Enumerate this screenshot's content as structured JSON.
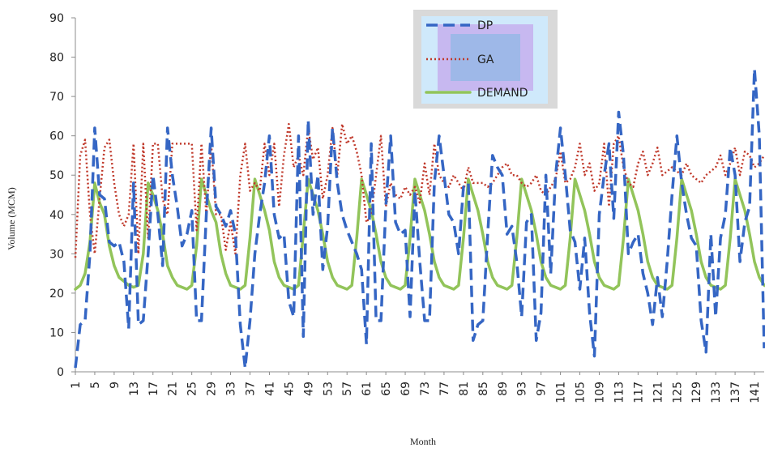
{
  "chart_data": {
    "type": "line",
    "title": "",
    "xlabel": "Month",
    "ylabel": "Volume (MCM)",
    "ylim": [
      0,
      90
    ],
    "y_ticks": [
      "0",
      "10",
      "20",
      "30",
      "40",
      "50",
      "60",
      "70",
      "80",
      "90"
    ],
    "x_tick_labels": [
      "1",
      "5",
      "9",
      "13",
      "17",
      "21",
      "25",
      "29",
      "33",
      "37",
      "41",
      "45",
      "49",
      "53",
      "57",
      "61",
      "65",
      "69",
      "73",
      "77",
      "81",
      "85",
      "89",
      "93",
      "97",
      "101",
      "105",
      "109",
      "113",
      "117",
      "121",
      "125",
      "129",
      "133",
      "137",
      "141"
    ],
    "xlim": [
      1,
      143
    ],
    "grid": false,
    "legend_position": "top-center",
    "series": [
      {
        "name": "DP",
        "color": "#3566C4",
        "style": "dashed",
        "values": [
          1,
          12,
          13,
          30,
          62,
          45,
          44,
          33,
          32,
          33,
          28,
          11,
          48,
          12,
          13,
          30,
          50,
          40,
          27,
          62,
          50,
          42,
          32,
          35,
          41,
          13,
          13,
          40,
          62,
          42,
          40,
          37,
          41,
          35,
          12,
          1,
          13,
          30,
          40,
          48,
          60,
          40,
          34,
          35,
          18,
          14,
          60,
          9,
          64,
          40,
          50,
          26,
          37,
          62,
          48,
          40,
          36,
          33,
          30,
          26,
          7,
          58,
          13,
          13,
          42,
          60,
          38,
          35,
          36,
          14,
          46,
          28,
          13,
          13,
          48,
          60,
          50,
          40,
          38,
          30,
          47,
          48,
          8,
          12,
          13,
          35,
          55,
          52,
          50,
          35,
          37,
          28,
          14,
          38,
          40,
          8,
          15,
          50,
          25,
          50,
          62,
          50,
          36,
          33,
          21,
          34,
          15,
          4,
          40,
          50,
          58,
          39,
          66,
          55,
          30,
          33,
          35,
          25,
          20,
          12,
          24,
          14,
          28,
          45,
          60,
          48,
          40,
          34,
          32,
          13,
          5,
          35,
          14,
          34,
          40,
          57,
          50,
          28,
          38,
          42,
          77,
          60,
          6
        ]
      },
      {
        "name": "GA",
        "color": "#C0392B",
        "style": "dotted",
        "values": [
          29,
          55,
          59,
          40,
          30,
          44,
          57,
          59,
          48,
          40,
          37,
          40,
          58,
          30,
          58,
          34,
          58,
          58,
          44,
          40,
          58,
          58,
          58,
          58,
          58,
          36,
          58,
          40,
          58,
          40,
          40,
          31,
          38,
          30,
          50,
          58,
          46,
          48,
          46,
          58,
          50,
          58,
          42,
          55,
          63,
          52,
          55,
          50,
          62,
          54,
          57,
          44,
          50,
          62,
          50,
          63,
          58,
          60,
          56,
          50,
          38,
          40,
          50,
          60,
          42,
          48,
          45,
          44,
          47,
          45,
          47,
          43,
          53,
          45,
          58,
          50,
          48,
          47,
          50,
          48,
          46,
          52,
          48,
          48,
          48,
          47,
          48,
          50,
          52,
          53,
          50,
          50,
          48,
          47,
          48,
          50,
          46,
          45,
          47,
          49,
          56,
          48,
          49,
          52,
          58,
          50,
          53,
          46,
          48,
          58,
          42,
          58,
          60,
          52,
          48,
          47,
          53,
          56,
          50,
          53,
          57,
          50,
          51,
          52,
          51,
          50,
          53,
          50,
          49,
          48,
          50,
          51,
          52,
          55,
          50,
          53,
          57,
          50,
          56,
          55,
          52,
          53,
          55
        ]
      },
      {
        "name": "DEMAND",
        "color": "#92C45A",
        "style": "solid",
        "values": [
          21,
          22,
          25,
          33,
          48,
          43,
          40,
          32,
          27,
          24,
          23,
          22,
          21.5,
          22,
          30,
          48,
          45,
          41,
          35,
          27,
          24,
          22,
          21.5,
          21,
          22,
          32,
          49,
          45,
          41,
          38,
          30,
          25,
          22,
          21.5,
          21,
          22,
          34,
          49,
          45,
          41,
          36,
          28,
          24,
          22,
          21.5,
          21,
          22,
          35,
          49,
          45,
          41,
          35,
          28,
          24,
          22,
          21.5,
          21,
          22,
          34,
          49,
          45,
          41,
          35,
          28,
          24,
          22,
          21.5,
          21,
          22,
          34,
          49,
          45,
          41,
          35,
          28,
          24,
          22,
          21.5,
          21,
          22,
          34,
          49,
          45,
          41,
          35,
          28,
          24,
          22,
          21.5,
          21,
          22,
          34,
          49,
          45,
          41,
          35,
          28,
          24,
          22,
          21.5,
          21,
          22,
          34,
          49,
          45,
          41,
          35,
          28,
          24,
          22,
          21.5,
          21,
          22,
          34,
          49,
          45,
          41,
          35,
          28,
          24,
          22,
          21.5,
          21,
          22,
          34,
          49,
          45,
          41,
          35,
          28,
          24,
          22,
          21.5,
          21,
          22,
          34,
          49,
          45,
          41,
          35,
          28,
          24,
          22,
          21.5,
          21,
          22
        ]
      }
    ]
  }
}
